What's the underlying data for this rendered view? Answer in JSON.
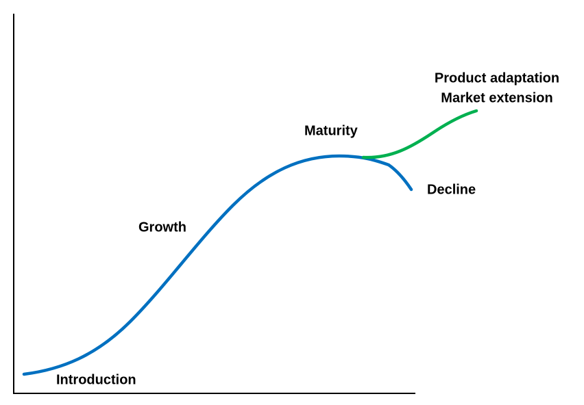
{
  "labels": [
    "Introduction",
    "Growth",
    "Maturity",
    "Decline",
    "Product adaptation",
    "Market extension"
  ]
}
